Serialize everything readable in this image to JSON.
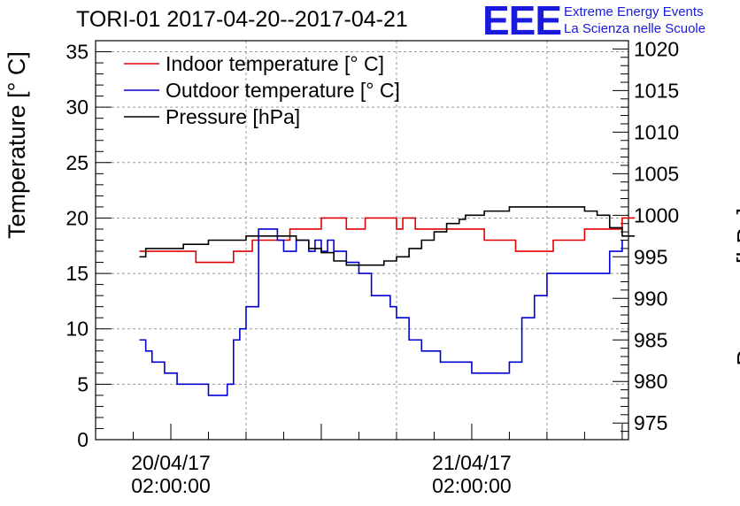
{
  "title": "TORI-01 2017-04-20--2017-04-21",
  "logo": {
    "mark": "EEE",
    "line1": "Extreme Energy Events",
    "line2": "La Scienza nelle Scuole"
  },
  "colors": {
    "indoor": "#e00000",
    "outdoor": "#0000d0",
    "pressure": "#000000",
    "grid": "#999999",
    "logo": "#1a1adc"
  },
  "chart_data": {
    "type": "line",
    "title": "TORI-01 2017-04-20--2017-04-21",
    "xlabel": "",
    "ylabel": "Temperature [° C]",
    "y2label": "Pressure [hPa]",
    "x_range_hours": [
      -6,
      36.5
    ],
    "ylim": [
      0,
      36
    ],
    "y2lim": [
      973,
      1021
    ],
    "yticks": [
      0,
      5,
      10,
      15,
      20,
      25,
      30,
      35
    ],
    "y2ticks": [
      975,
      980,
      985,
      990,
      995,
      1000,
      1005,
      1010,
      1015,
      1020
    ],
    "xticks": [
      {
        "hour": 0,
        "line1": "20/04/17",
        "line2": "02:00:00"
      },
      {
        "hour": 24,
        "line1": "21/04/17",
        "line2": "02:00:00"
      }
    ],
    "grid": true,
    "legend_position": "top-left",
    "series": [
      {
        "name": "Indoor temperature [° C]",
        "axis": "left",
        "x": [
          -2.5,
          1.5,
          2,
          4.5,
          5,
          6,
          6.5,
          7,
          8,
          9.5,
          10,
          10.5,
          12,
          12.5,
          14,
          15,
          15.5,
          16,
          18,
          18.5,
          19,
          19.5,
          20,
          23,
          25,
          27,
          27.5,
          30,
          30.5,
          32,
          33,
          34,
          36,
          37
        ],
        "values": [
          17,
          17,
          16,
          16,
          17,
          17,
          18,
          18,
          18,
          19,
          19,
          19,
          20,
          20,
          19,
          19,
          20,
          20,
          19,
          20,
          20,
          19,
          19,
          19,
          18,
          18,
          17,
          17,
          18,
          18,
          19,
          19,
          20,
          20
        ]
      },
      {
        "name": "Outdoor temperature [° C]",
        "axis": "left",
        "x": [
          -2.5,
          -2,
          -1.5,
          -1,
          -0.5,
          0,
          0.5,
          1,
          1.5,
          2,
          2.5,
          3,
          3.5,
          4,
          4.5,
          5,
          5.5,
          6,
          7,
          8,
          8.5,
          9,
          10,
          11,
          11.5,
          12,
          12.5,
          13,
          13.5,
          14,
          14.5,
          15,
          15.5,
          16,
          17,
          17.5,
          18,
          19,
          20,
          21,
          21.5,
          22,
          22.5,
          23,
          23.5,
          24,
          25,
          26,
          27,
          28,
          29,
          30,
          31,
          32,
          33,
          34,
          35,
          35.5,
          36
        ],
        "values": [
          9,
          8,
          7,
          7,
          6,
          6,
          5,
          5,
          5,
          5,
          5,
          4,
          4,
          4,
          5,
          9,
          10,
          12,
          19,
          19,
          18,
          17,
          18,
          17,
          18,
          17,
          18,
          17,
          17,
          16,
          16,
          15,
          15,
          13,
          13,
          12,
          11,
          9,
          8,
          8,
          7,
          7,
          7,
          7,
          7,
          6,
          6,
          6,
          7,
          11,
          13,
          15,
          15,
          15,
          15,
          15,
          17,
          17,
          18
        ]
      },
      {
        "name": "Pressure [hPa]",
        "axis": "right",
        "x": [
          -2.5,
          -2,
          -1,
          0,
          1,
          2,
          3,
          4,
          5,
          6,
          7,
          8,
          9,
          10,
          11,
          12,
          13,
          14,
          15,
          16,
          17,
          18,
          19,
          20,
          21,
          22,
          23,
          23.5,
          24,
          25,
          26,
          27,
          28,
          29,
          30,
          31,
          32,
          33,
          34,
          35,
          36,
          37
        ],
        "values": [
          995,
          996,
          996,
          996,
          996.5,
          996.5,
          997,
          997,
          997,
          997.5,
          997.5,
          997.5,
          997.5,
          997,
          996,
          995.5,
          994.5,
          994,
          994,
          994,
          994.5,
          995,
          996,
          997,
          998,
          999,
          999.5,
          1000,
          1000,
          1000.5,
          1000.5,
          1001,
          1001,
          1001,
          1001,
          1001,
          1001,
          1000.5,
          1000,
          998.5,
          997.5,
          997.5
        ]
      }
    ]
  }
}
